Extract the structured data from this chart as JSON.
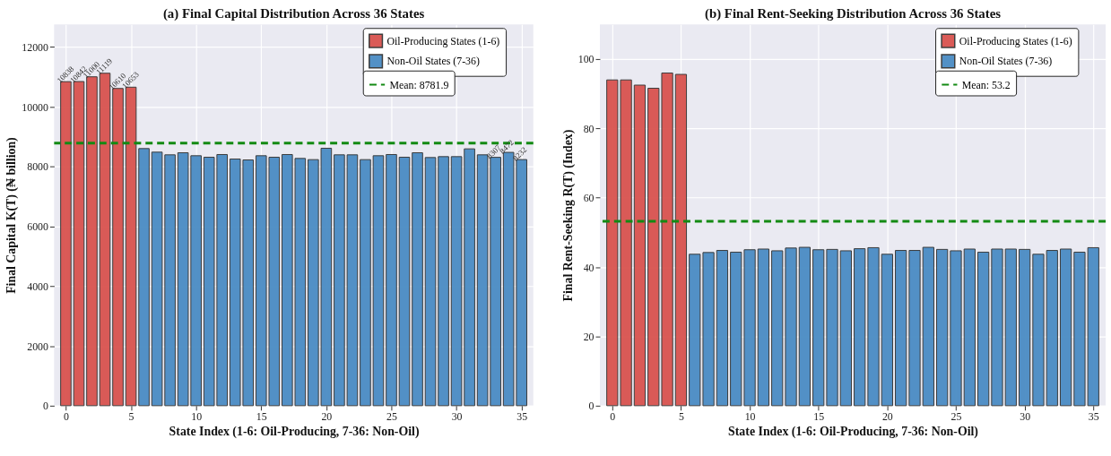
{
  "chart_data": [
    {
      "type": "bar",
      "title": "(a) Final Capital Distribution Across 36 States",
      "xlabel": "State Index (1-6: Oil-Producing, 7-36: Non-Oil)",
      "ylabel": "Final Capital K(T) (₦ billion)",
      "x": [
        0,
        1,
        2,
        3,
        4,
        5,
        6,
        7,
        8,
        9,
        10,
        11,
        12,
        13,
        14,
        15,
        16,
        17,
        18,
        19,
        20,
        21,
        22,
        23,
        24,
        25,
        26,
        27,
        28,
        29,
        30,
        31,
        32,
        33,
        34,
        35
      ],
      "series": [
        {
          "name": "Oil-Producing States (1-6)",
          "color": "#d9534f",
          "values": [
            10838,
            10842,
            11000,
            11119,
            10610,
            10653,
            null,
            null,
            null,
            null,
            null,
            null,
            null,
            null,
            null,
            null,
            null,
            null,
            null,
            null,
            null,
            null,
            null,
            null,
            null,
            null,
            null,
            null,
            null,
            null,
            null,
            null,
            null,
            null,
            null,
            null
          ],
          "value_labels": [
            "10838",
            "10842",
            "11000",
            "11119",
            "10610",
            "10653",
            null,
            null,
            null,
            null,
            null,
            null,
            null,
            null,
            null,
            null,
            null,
            null,
            null,
            null,
            null,
            null,
            null,
            null,
            null,
            null,
            null,
            null,
            null,
            null,
            null,
            null,
            null,
            null,
            null,
            null
          ]
        },
        {
          "name": "Non-Oil States (7-36)",
          "color": "#4a8cc4",
          "values": [
            null,
            null,
            null,
            null,
            null,
            null,
            8600,
            8480,
            8390,
            8460,
            8360,
            8310,
            8400,
            8250,
            8220,
            8360,
            8310,
            8400,
            8270,
            8230,
            8610,
            8390,
            8390,
            8230,
            8360,
            8400,
            8310,
            8460,
            8300,
            8330,
            8330,
            8590,
            8390,
            8307,
            8472,
            8232
          ],
          "value_labels": [
            null,
            null,
            null,
            null,
            null,
            null,
            null,
            null,
            null,
            null,
            null,
            null,
            null,
            null,
            null,
            null,
            null,
            null,
            null,
            null,
            null,
            null,
            null,
            null,
            null,
            null,
            null,
            null,
            null,
            null,
            null,
            null,
            null,
            "8307",
            "8472",
            "8232"
          ]
        }
      ],
      "ref_lines": [
        {
          "axis": "y",
          "value": 8781.9,
          "label": "Mean: 8781.9",
          "color": "#138a13",
          "line_style": "dashed"
        }
      ],
      "xlim": [
        -0.9,
        35.9
      ],
      "xticks": [
        0,
        5,
        10,
        15,
        20,
        25,
        30,
        35
      ],
      "ylim": [
        0,
        12750
      ],
      "yticks": [
        0,
        2000,
        4000,
        6000,
        8000,
        10000,
        12000
      ],
      "grid": true,
      "legend": "top right"
    },
    {
      "type": "bar",
      "title": "(b) Final Rent-Seeking Distribution Across 36 States",
      "xlabel": "State Index (1-6: Oil-Producing, 7-36: Non-Oil)",
      "ylabel": "Final Rent-Seeking R(T) (Index)",
      "x": [
        0,
        1,
        2,
        3,
        4,
        5,
        6,
        7,
        8,
        9,
        10,
        11,
        12,
        13,
        14,
        15,
        16,
        17,
        18,
        19,
        20,
        21,
        22,
        23,
        24,
        25,
        26,
        27,
        28,
        29,
        30,
        31,
        32,
        33,
        34,
        35
      ],
      "series": [
        {
          "name": "Oil-Producing States (1-6)",
          "color": "#d9534f",
          "values": [
            94,
            94,
            92.5,
            91.6,
            96,
            95.6,
            null,
            null,
            null,
            null,
            null,
            null,
            null,
            null,
            null,
            null,
            null,
            null,
            null,
            null,
            null,
            null,
            null,
            null,
            null,
            null,
            null,
            null,
            null,
            null,
            null,
            null,
            null,
            null,
            null,
            null
          ]
        },
        {
          "name": "Non-Oil States (7-36)",
          "color": "#4a8cc4",
          "values": [
            null,
            null,
            null,
            null,
            null,
            null,
            43.7,
            44.2,
            44.8,
            44.3,
            45.0,
            45.2,
            44.7,
            45.5,
            45.7,
            45.0,
            45.1,
            44.7,
            45.3,
            45.6,
            43.7,
            44.8,
            44.8,
            45.7,
            45.1,
            44.7,
            45.2,
            44.3,
            45.2,
            45.2,
            45.1,
            43.7,
            44.8,
            45.2,
            44.3,
            45.6
          ]
        }
      ],
      "ref_lines": [
        {
          "axis": "y",
          "value": 53.2,
          "label": "Mean: 53.2",
          "color": "#138a13",
          "line_style": "dashed"
        }
      ],
      "xlim": [
        -0.9,
        35.9
      ],
      "xticks": [
        0,
        5,
        10,
        15,
        20,
        25,
        30,
        35
      ],
      "ylim": [
        0,
        110
      ],
      "yticks": [
        0,
        20,
        40,
        60,
        80,
        100
      ],
      "grid": true,
      "legend": "top right"
    }
  ]
}
